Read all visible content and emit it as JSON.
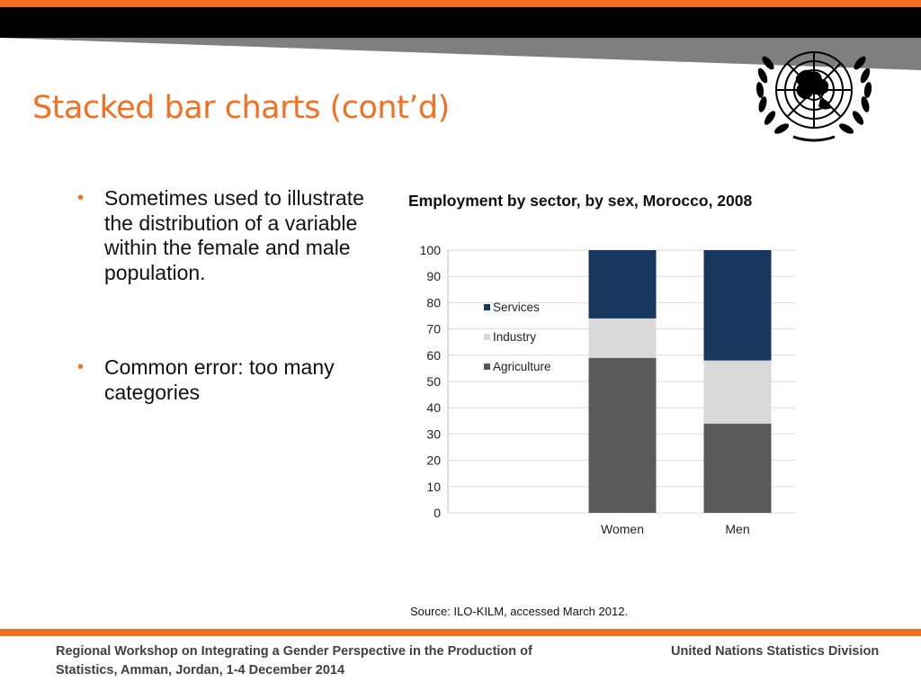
{
  "slide": {
    "title": "Stacked bar charts (cont’d)",
    "bullets": [
      "Sometimes used to illustrate the distribution of a variable within the female and male population.",
      "Common error: too many categories"
    ],
    "source": "Source: ILO-KILM, accessed March 2012.",
    "footer_left": "Regional Workshop on Integrating a Gender Perspective in the Production of Statistics, Amman, Jordan, 1-4 December 2014",
    "footer_right": "United Nations Statistics Division"
  },
  "colors": {
    "accent": "#f36f21",
    "services": "#17375e",
    "industry": "#d9d9d9",
    "agriculture": "#595959"
  },
  "chart_data": {
    "type": "bar",
    "stacked": true,
    "title": "Employment by sector, by sex, Morocco, 2008",
    "categories": [
      "Women",
      "Men"
    ],
    "series": [
      {
        "name": "Agriculture",
        "values": [
          59,
          34
        ]
      },
      {
        "name": "Industry",
        "values": [
          15,
          24
        ]
      },
      {
        "name": "Services",
        "values": [
          26,
          42
        ]
      }
    ],
    "legend_order": [
      "Services",
      "Industry",
      "Agriculture"
    ],
    "ylim": [
      0,
      100
    ],
    "yticks": [
      0,
      10,
      20,
      30,
      40,
      50,
      60,
      70,
      80,
      90,
      100
    ],
    "xlabel": "",
    "ylabel": "",
    "grid": true,
    "legend_position": "top-left"
  }
}
